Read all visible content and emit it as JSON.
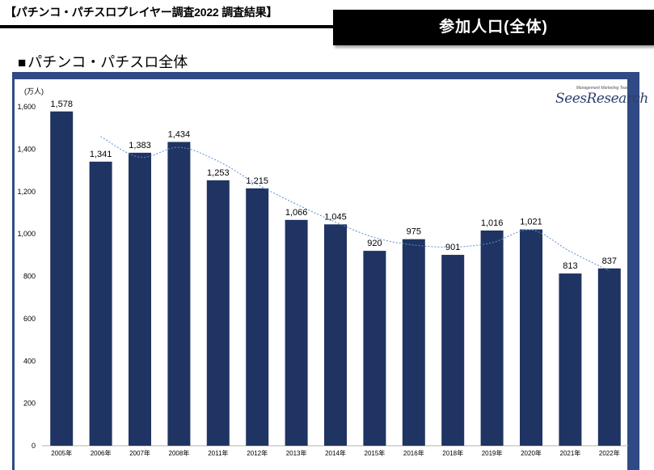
{
  "header": {
    "title": "【パチンコ・パチスロプレイヤー調査2022 調査結果】",
    "badge": "参加人口(全体)"
  },
  "section": {
    "square": "■",
    "title": "パチンコ・パチスロ全体"
  },
  "logo": {
    "tagline": "Management Marketing Team",
    "name": "SeesResearch"
  },
  "colors": {
    "bar": "#1f3462",
    "frame": "#2f4a85",
    "trend": "#5b8fd0"
  },
  "chart_data": {
    "type": "bar",
    "yunit": "(万人)",
    "categories": [
      "2005年",
      "2006年",
      "2007年",
      "2008年",
      "2011年",
      "2012年",
      "2013年",
      "2014年",
      "2015年",
      "2016年",
      "2018年",
      "2019年",
      "2020年",
      "2021年",
      "2022年"
    ],
    "values": [
      1578,
      1341,
      1383,
      1434,
      1253,
      1215,
      1066,
      1045,
      920,
      975,
      901,
      1016,
      1021,
      813,
      837
    ],
    "value_labels": [
      "1,578",
      "1,341",
      "1,383",
      "1,434",
      "1,253",
      "1,215",
      "1,066",
      "1,045",
      "920",
      "975",
      "901",
      "1,016",
      "1,021",
      "813",
      "837"
    ],
    "ylim": [
      0,
      1600
    ],
    "yticks": [
      0,
      200,
      400,
      600,
      800,
      1000,
      1200,
      1400,
      1600
    ],
    "ytick_labels": [
      "0",
      "200",
      "400",
      "600",
      "800",
      "1,000",
      "1,200",
      "1,400",
      "1,600"
    ],
    "trendline": "moving-average",
    "grid": false
  }
}
